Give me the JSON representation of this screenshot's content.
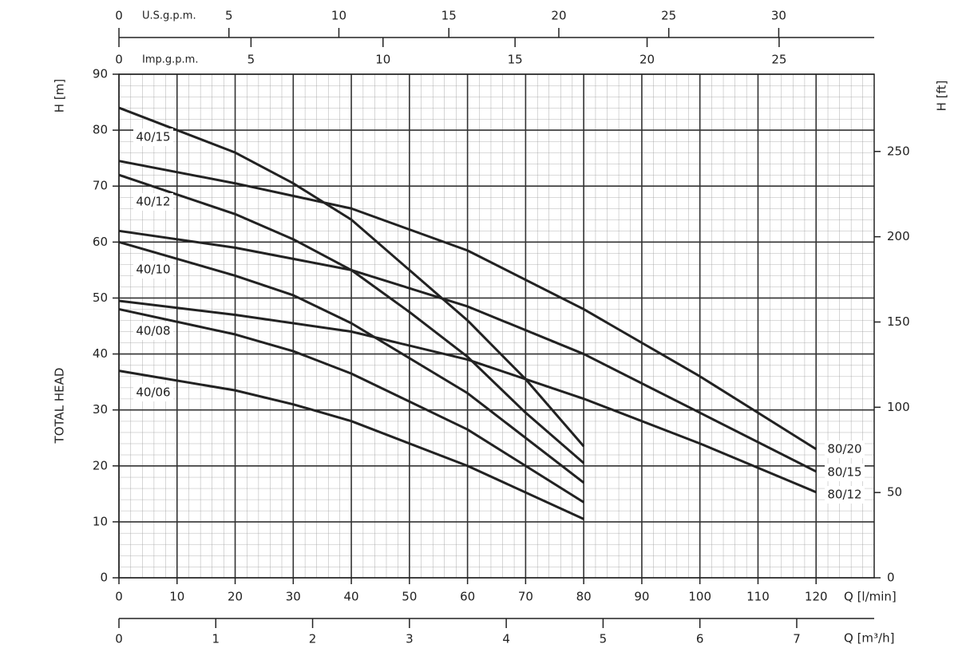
{
  "chart_data": {
    "type": "line",
    "x_label": "Q [l/min]",
    "y_label": "H [m]",
    "y_title": "TOTAL HEAD",
    "y2_label": "H [ft]",
    "xlim": [
      0,
      130
    ],
    "xticks": [
      0,
      10,
      20,
      30,
      40,
      50,
      60,
      70,
      80,
      90,
      100,
      110,
      120
    ],
    "ylim": [
      0,
      90
    ],
    "yticks": [
      0,
      10,
      20,
      30,
      40,
      50,
      60,
      70,
      80,
      90
    ],
    "y2lim": [
      0,
      295.3
    ],
    "y2ticks": [
      0,
      50,
      100,
      150,
      200,
      250
    ],
    "grid": true,
    "minor_grid": {
      "x": 2,
      "y": 2
    },
    "top_axes": [
      {
        "label": "U.S.g.p.m.",
        "xlim": [
          0,
          34.34
        ],
        "xticks": [
          0,
          5,
          10,
          15,
          20,
          25,
          30
        ]
      },
      {
        "label": "Imp.g.p.m.",
        "xlim": [
          0,
          28.6
        ],
        "xticks": [
          0,
          5,
          10,
          15,
          20,
          25
        ]
      }
    ],
    "bottom_axis2": {
      "label": "Q [m³/h]",
      "xlim": [
        0,
        7.8
      ],
      "xticks": [
        0,
        1,
        2,
        3,
        4,
        5,
        6,
        7
      ]
    },
    "series": [
      {
        "name": "40/15",
        "color": "#222222",
        "x": [
          0,
          20,
          30,
          40,
          50,
          60,
          70,
          80
        ],
        "values": [
          84,
          76,
          70.5,
          64,
          55,
          46,
          35.5,
          23.5
        ]
      },
      {
        "name": "40/12",
        "color": "#222222",
        "x": [
          0,
          20,
          30,
          40,
          50,
          60,
          70,
          80
        ],
        "values": [
          72,
          65,
          60.5,
          55,
          47.5,
          39.5,
          29.5,
          20.5
        ]
      },
      {
        "name": "40/10",
        "color": "#222222",
        "x": [
          0,
          20,
          30,
          40,
          60,
          80
        ],
        "values": [
          60,
          54,
          50.5,
          45.5,
          33,
          17
        ]
      },
      {
        "name": "40/08",
        "color": "#222222",
        "x": [
          0,
          20,
          30,
          40,
          60,
          80
        ],
        "values": [
          48,
          43.5,
          40.5,
          36.5,
          26.5,
          13.5
        ]
      },
      {
        "name": "40/06",
        "color": "#222222",
        "x": [
          0,
          20,
          30,
          40,
          60,
          80
        ],
        "values": [
          37,
          33.5,
          31,
          28,
          20,
          10.5
        ]
      },
      {
        "name": "80/20",
        "color": "#222222",
        "x": [
          0,
          20,
          40,
          60,
          80,
          100,
          120
        ],
        "values": [
          74.5,
          70.5,
          66,
          58.5,
          48,
          36,
          23
        ]
      },
      {
        "name": "80/15",
        "color": "#222222",
        "x": [
          0,
          20,
          40,
          60,
          80,
          100,
          120
        ],
        "values": [
          62,
          59,
          55,
          48.5,
          40,
          29.5,
          19
        ]
      },
      {
        "name": "80/12",
        "color": "#222222",
        "x": [
          0,
          20,
          40,
          60,
          80,
          100,
          120
        ],
        "values": [
          49.5,
          47,
          44,
          39,
          32,
          24,
          15.3
        ]
      }
    ]
  }
}
